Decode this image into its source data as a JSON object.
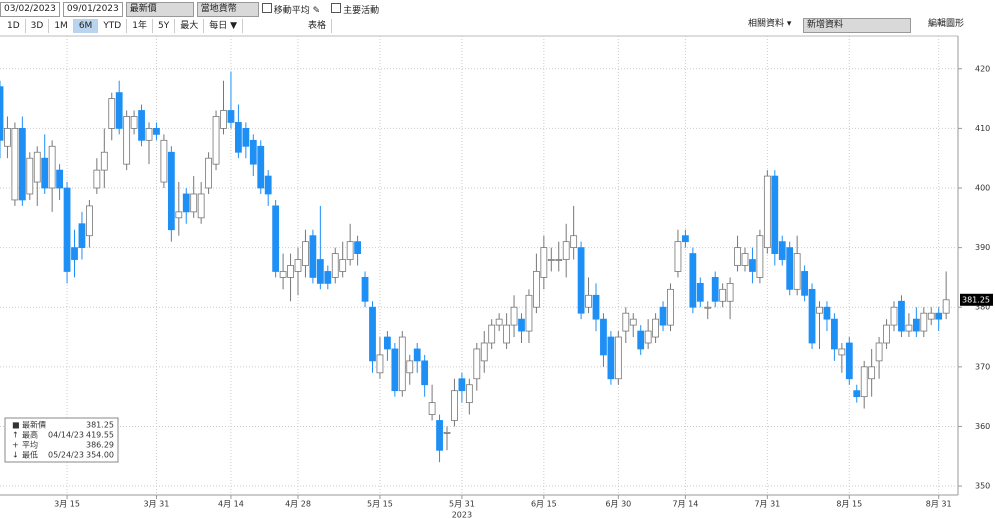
{
  "toolbar": {
    "start_date": "03/02/2023",
    "end_date": "09/01/2023",
    "field": "最新價",
    "currency": "當地貨幣",
    "moving_avg": "移動平均",
    "events": "主要活動",
    "periods": [
      "1D",
      "3D",
      "1M",
      "6M",
      "YTD",
      "1年",
      "5Y",
      "最大"
    ],
    "frequency": "每日 ▼",
    "table": "表格",
    "related": "相關資料 ▾",
    "add_data": "新增資料",
    "edit": "編輯圖形"
  },
  "chart_data": {
    "type": "candlestick",
    "year_label": "2023",
    "up_color": "#ffffff",
    "down_color": "#1e8ff5",
    "grid": true,
    "categories": [
      null,
      null,
      null,
      null,
      null,
      null,
      null,
      null,
      null,
      "3月 15",
      null,
      null,
      null,
      null,
      null,
      null,
      null,
      null,
      null,
      null,
      null,
      "3月 31",
      null,
      null,
      null,
      null,
      null,
      null,
      null,
      null,
      null,
      "4月 14",
      null,
      null,
      null,
      null,
      null,
      null,
      null,
      null,
      "4月 28",
      null,
      null,
      null,
      null,
      null,
      null,
      null,
      null,
      null,
      null,
      "5月 15",
      null,
      null,
      null,
      null,
      null,
      null,
      null,
      null,
      null,
      null,
      "5月 31",
      null,
      null,
      null,
      null,
      null,
      null,
      null,
      null,
      null,
      null,
      "6月 15",
      null,
      null,
      null,
      null,
      null,
      null,
      null,
      null,
      null,
      "6月 30",
      null,
      null,
      null,
      null,
      null,
      null,
      null,
      null,
      "7月 14",
      null,
      null,
      null,
      null,
      null,
      null,
      null,
      null,
      null,
      null,
      "7月 31",
      null,
      null,
      null,
      null,
      null,
      null,
      null,
      null,
      null,
      null,
      "8月 15",
      null,
      null,
      null,
      null,
      null,
      null,
      null,
      null,
      null,
      null,
      null,
      "8月 31",
      null
    ],
    "open": [
      417,
      407,
      398,
      410,
      399,
      401,
      405,
      400,
      403,
      400,
      390,
      394,
      392,
      400,
      403,
      410,
      416,
      404,
      410,
      413,
      408,
      410,
      401,
      406,
      395,
      399,
      396,
      395,
      400,
      404,
      410,
      413,
      411,
      410,
      408,
      407,
      402,
      397,
      385,
      385,
      386,
      387,
      392,
      388,
      386,
      385,
      386,
      388,
      391,
      385,
      380,
      369,
      375,
      373,
      366,
      369,
      373,
      371,
      362,
      361,
      359,
      361,
      368,
      364,
      368,
      371,
      374,
      377,
      374,
      377,
      378,
      376,
      380,
      385,
      388,
      388,
      388,
      390,
      390,
      380,
      382,
      378,
      375,
      368,
      376,
      377,
      376,
      374,
      375,
      380,
      377,
      386,
      392,
      389,
      384,
      380,
      385,
      381,
      381,
      387,
      387,
      388,
      385,
      390,
      402,
      391,
      390,
      383,
      386,
      383,
      379,
      380,
      378,
      372,
      374,
      366,
      365,
      368,
      371,
      374,
      377,
      381,
      376,
      378,
      376,
      378,
      379,
      379
    ],
    "high": [
      418,
      412,
      411,
      412,
      406,
      407,
      409,
      408,
      404,
      401,
      393,
      396,
      398,
      405,
      410,
      416,
      418,
      413,
      413,
      414,
      411,
      411,
      409,
      407,
      401,
      400,
      402,
      401,
      406,
      413,
      418,
      419.55,
      414,
      411,
      409,
      408,
      403,
      398,
      389,
      389,
      390,
      393,
      393,
      397,
      387,
      390,
      391,
      394,
      392,
      386,
      381,
      375,
      376,
      374,
      376,
      372,
      374,
      372,
      367,
      362,
      360,
      368,
      369,
      368,
      374,
      376,
      378,
      379,
      379,
      382,
      379,
      383,
      389,
      392,
      390,
      391,
      394,
      397,
      391,
      385,
      384,
      379,
      376,
      376,
      380,
      379,
      377,
      378,
      379,
      381,
      384,
      393,
      393,
      390,
      385,
      381,
      386,
      384,
      385,
      392,
      390,
      390,
      393,
      403,
      403,
      392,
      391,
      392,
      387,
      384,
      381,
      381,
      379,
      374,
      375,
      367,
      371,
      373,
      375,
      378,
      381,
      382,
      379,
      380,
      380,
      380,
      380,
      386
    ],
    "low": [
      405,
      405,
      397,
      397,
      398,
      397,
      399,
      396,
      398,
      384,
      385,
      388,
      390,
      399,
      400,
      408,
      409,
      403,
      409,
      407,
      404,
      408,
      400,
      391,
      392,
      394,
      395,
      394,
      399,
      403,
      409,
      410,
      405,
      405,
      402,
      399,
      397,
      385,
      383,
      381,
      382,
      385,
      384,
      383,
      383,
      384,
      385,
      387,
      387,
      380,
      369,
      368,
      371,
      365,
      365,
      367,
      369,
      365,
      361,
      354,
      356,
      360,
      364,
      362,
      366,
      369,
      373,
      376,
      373,
      375,
      374,
      374,
      379,
      383,
      386,
      386,
      385,
      388,
      378,
      379,
      376,
      370,
      367,
      367,
      374,
      375,
      372,
      373,
      374,
      376,
      376,
      385,
      390,
      379,
      380,
      378,
      380,
      380,
      378,
      386,
      386,
      384,
      384,
      389,
      387,
      387,
      382,
      382,
      381,
      373,
      373,
      376,
      371,
      369,
      367,
      364,
      363,
      365,
      368,
      373,
      376,
      375,
      375,
      375,
      375,
      377,
      376,
      378
    ],
    "close": [
      408,
      410,
      410,
      398,
      405,
      406,
      400,
      407,
      400,
      386,
      388,
      390,
      397,
      403,
      406,
      415,
      410,
      412,
      412,
      408,
      410,
      409,
      408,
      393,
      396,
      396,
      399,
      399,
      405,
      412,
      413,
      411,
      406,
      407,
      404,
      400,
      399,
      386,
      386,
      387,
      388,
      391,
      385,
      384,
      384,
      389,
      388,
      391,
      389,
      381,
      371,
      372,
      373,
      366,
      375,
      371,
      371,
      367,
      364,
      356,
      359,
      366,
      366,
      367,
      373,
      374,
      377,
      378,
      377,
      380,
      376,
      382,
      386,
      390,
      388,
      388,
      391,
      392,
      379,
      382,
      378,
      372,
      368,
      375,
      379,
      378,
      373,
      376,
      378,
      377,
      383,
      391,
      391,
      380,
      381,
      380,
      381,
      383,
      384,
      390,
      389,
      386,
      392,
      402,
      389,
      388,
      383,
      389,
      382,
      374,
      380,
      378,
      373,
      373,
      368,
      365,
      370,
      370,
      374,
      377,
      380,
      376,
      377,
      376,
      379,
      379,
      378,
      381.25
    ],
    "ylim": [
      348.5,
      425.5
    ],
    "yticks": [
      350,
      360,
      370,
      380,
      390,
      400,
      410,
      420
    ],
    "legend": [
      {
        "name": "最新價",
        "value": 381.25
      },
      {
        "name": "最高",
        "date": "04/14/23",
        "value": 419.55
      },
      {
        "name": "平均",
        "value": 386.29
      },
      {
        "name": "最低",
        "date": "05/24/23",
        "value": 354,
        "value_label": "354.00"
      }
    ]
  }
}
